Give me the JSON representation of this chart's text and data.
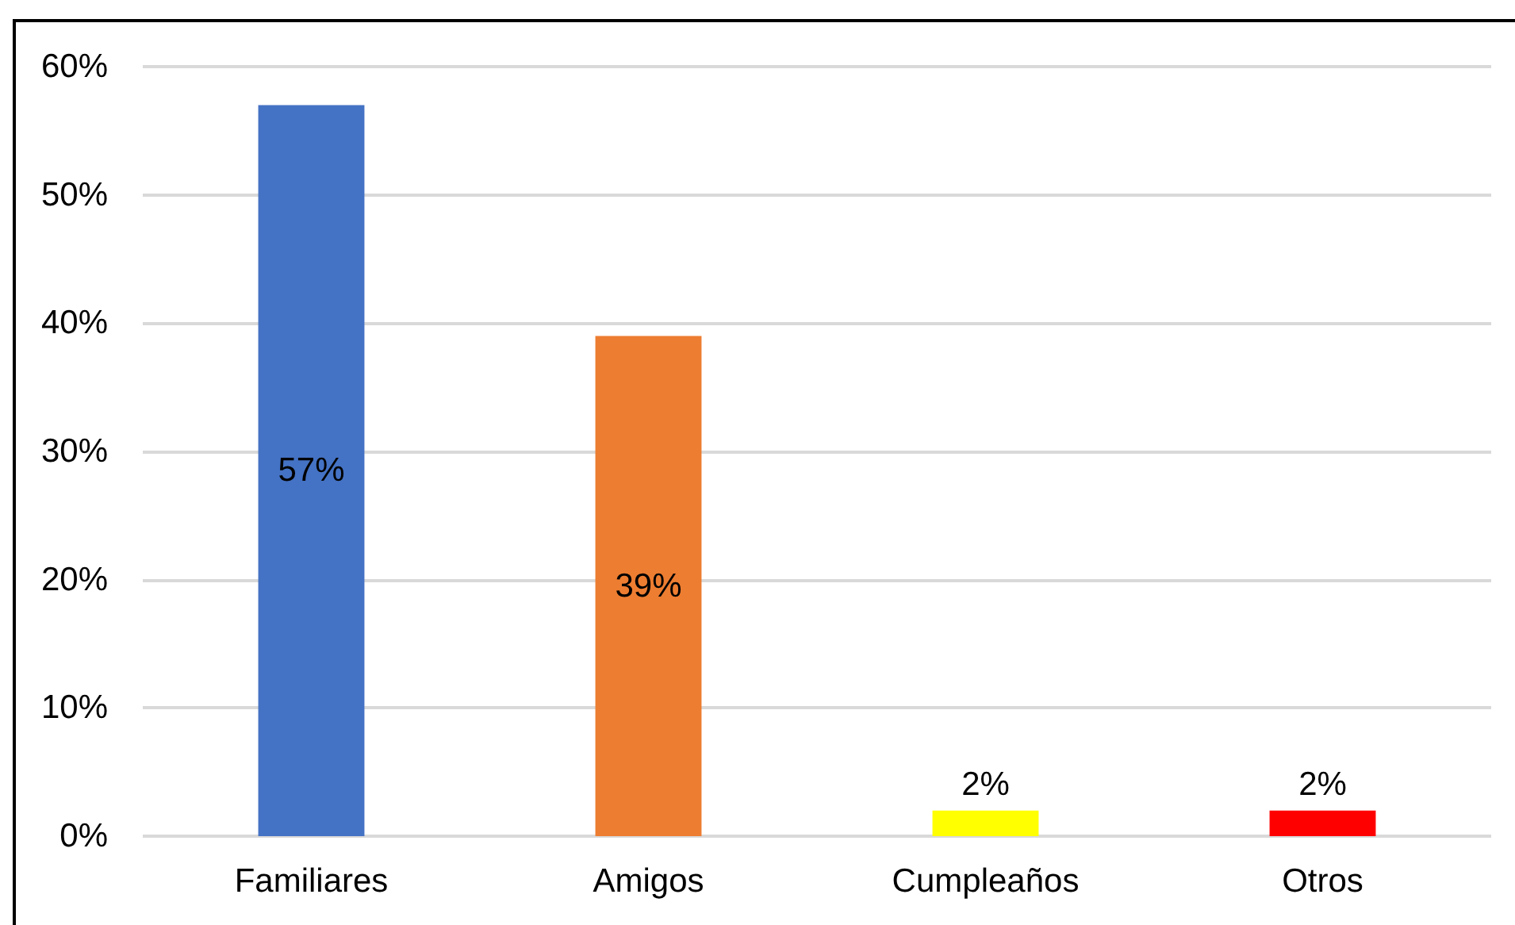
{
  "chart_data": {
    "type": "bar",
    "categories": [
      "Familiares",
      "Amigos",
      "Cumpleaños",
      "Otros"
    ],
    "values": [
      57,
      39,
      2,
      2
    ],
    "colors": [
      "#4472c4",
      "#ed7d31",
      "#ffff00",
      "#ff0000"
    ],
    "ylim": [
      0,
      60
    ],
    "yticks": [
      {
        "value": 0,
        "label": "0%"
      },
      {
        "value": 10,
        "label": "10%"
      },
      {
        "value": 20,
        "label": "20%"
      },
      {
        "value": 30,
        "label": "30%"
      },
      {
        "value": 40,
        "label": "40%"
      },
      {
        "value": 50,
        "label": "50%"
      },
      {
        "value": 60,
        "label": "60%"
      }
    ],
    "value_labels": [
      "57%",
      "39%",
      "2%",
      "2%"
    ],
    "grid": "y"
  }
}
